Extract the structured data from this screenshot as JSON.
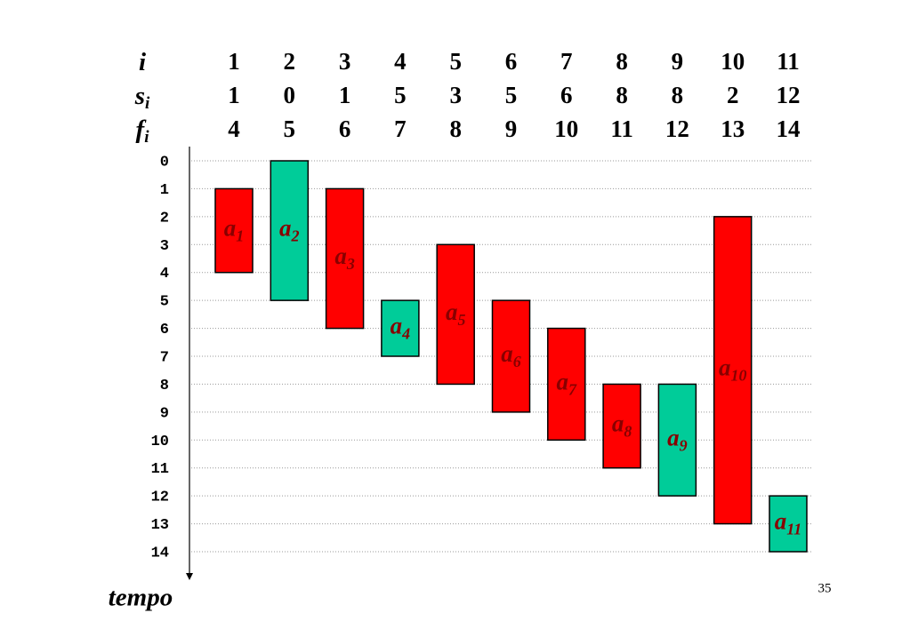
{
  "chart_data": {
    "type": "gantt",
    "row_labels": [
      {
        "main": "i"
      },
      {
        "main": "s",
        "sub": "i"
      },
      {
        "main": "f",
        "sub": "i"
      }
    ],
    "i": [
      1,
      2,
      3,
      4,
      5,
      6,
      7,
      8,
      9,
      10,
      11
    ],
    "s": [
      1,
      0,
      1,
      5,
      3,
      5,
      6,
      8,
      8,
      2,
      12
    ],
    "f": [
      4,
      5,
      6,
      7,
      8,
      9,
      10,
      11,
      12,
      13,
      14
    ],
    "colors": [
      "#ff0000",
      "#00cc99",
      "#ff0000",
      "#00cc99",
      "#ff0000",
      "#ff0000",
      "#ff0000",
      "#ff0000",
      "#00cc99",
      "#ff0000",
      "#00cc99"
    ],
    "bar_label": "a",
    "ylim": [
      0,
      14
    ],
    "yticks": [
      0,
      1,
      2,
      3,
      4,
      5,
      6,
      7,
      8,
      9,
      10,
      11,
      12,
      13,
      14
    ],
    "grid": true,
    "axis_label": "tempo",
    "page_number": "35"
  }
}
